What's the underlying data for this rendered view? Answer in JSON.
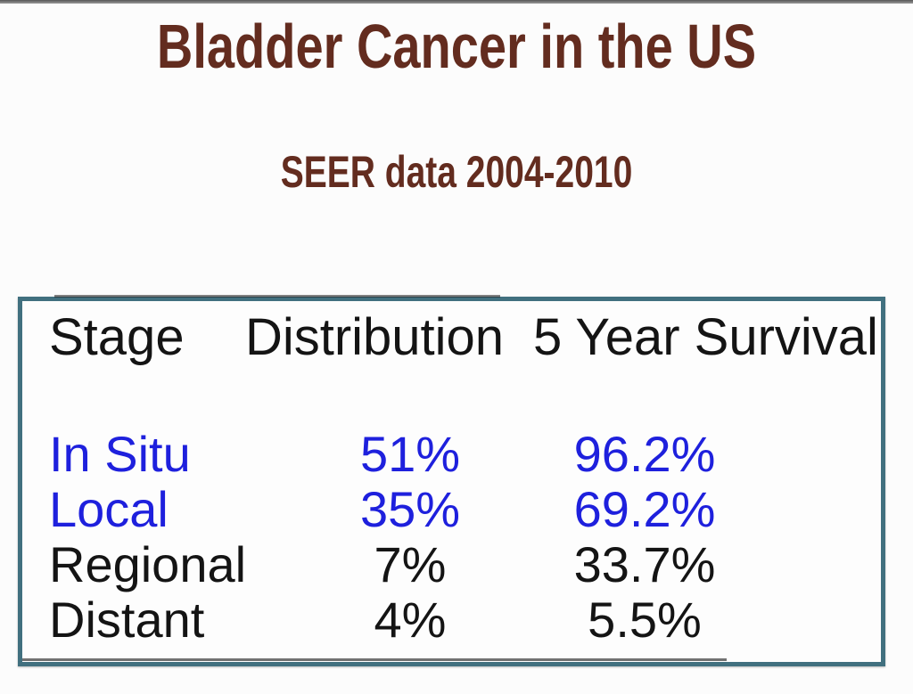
{
  "slide": {
    "title": "Bladder Cancer in the US",
    "subtitle": "SEER data 2004-2010"
  },
  "colors": {
    "title-brown": "#632c1f",
    "accent-blue": "#1e20dd",
    "text-dark": "#141414",
    "table-border": "#41707f",
    "top-bar": "#565656",
    "background": "#fcfcfc"
  },
  "table": {
    "columns": [
      "Stage",
      "Distribution",
      "5 Year Survival"
    ],
    "rows": [
      {
        "stage": "In Situ",
        "distribution": "51%",
        "survival": "96.2%",
        "emphasis": "blue"
      },
      {
        "stage": "Local",
        "distribution": "35%",
        "survival": "69.2%",
        "emphasis": "blue"
      },
      {
        "stage": "Regional",
        "distribution": "7%",
        "survival": "33.7%",
        "emphasis": "black"
      },
      {
        "stage": "Distant",
        "distribution": "4%",
        "survival": "5.5%",
        "emphasis": "black"
      }
    ]
  },
  "chart_data": {
    "type": "table",
    "title": "Bladder Cancer in the US",
    "subtitle": "SEER data 2004-2010",
    "columns": [
      "Stage",
      "Distribution",
      "5 Year Survival"
    ],
    "rows": [
      [
        "In Situ",
        "51%",
        "96.2%"
      ],
      [
        "Local",
        "35%",
        "69.2%"
      ],
      [
        "Regional",
        "7%",
        "33.7%"
      ],
      [
        "Distant",
        "4%",
        "5.5%"
      ]
    ],
    "notes": "In Situ and Local rows rendered in blue; Regional and Distant in black"
  }
}
